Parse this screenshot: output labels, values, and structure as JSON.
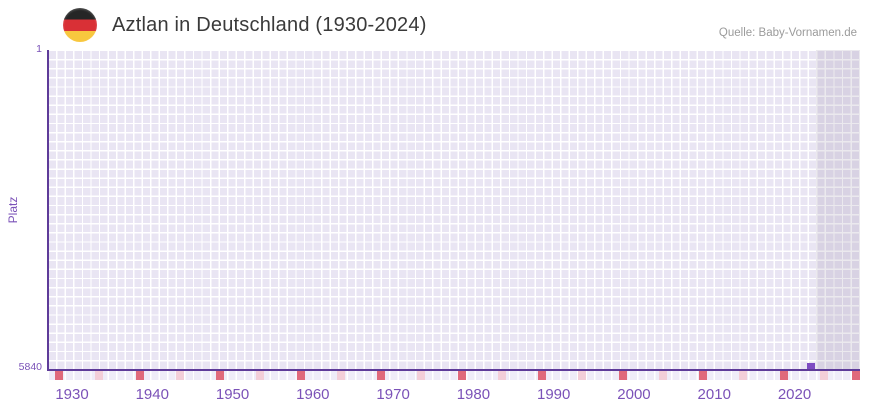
{
  "header": {
    "flag_icon": "german-flag",
    "title": "Aztlan in Deutschland (1930-2024)",
    "source": "Quelle: Baby-Vornamen.de"
  },
  "chart_data": {
    "type": "scatter",
    "title": "Aztlan in Deutschland (1930-2024)",
    "xlabel": "",
    "ylabel": "Platz",
    "x_range": [
      1930,
      2024
    ],
    "x_tick_labels": [
      "1930",
      "1940",
      "1950",
      "1960",
      "1970",
      "1980",
      "1990",
      "2000",
      "2010",
      "2020"
    ],
    "y_axis": {
      "top_label": "1",
      "bottom_label": "5840",
      "min": 1,
      "max": 5840,
      "inverted": true
    },
    "grid": "quilt-pattern on",
    "legend": "none",
    "points": [
      {
        "year": 2022,
        "platz": 5840
      }
    ],
    "recent_years_band": {
      "from_year": 2023,
      "to_year": 2024
    }
  },
  "colors": {
    "axis": "#5e3b99",
    "tick_label": "#7b52b8",
    "grid_cell": "#e9e5f3",
    "recent_band_overlay": "rgba(110,100,135,0.14)",
    "decade_tick": "#e0697b",
    "half_decade_tick": "#f3ced8",
    "data_point": "#7e4cc2",
    "title_text": "#3a3a3a",
    "source_text": "#9b9b9b",
    "flag_black": "#262626",
    "flag_red": "#d93036",
    "flag_gold": "#f8c73e"
  }
}
